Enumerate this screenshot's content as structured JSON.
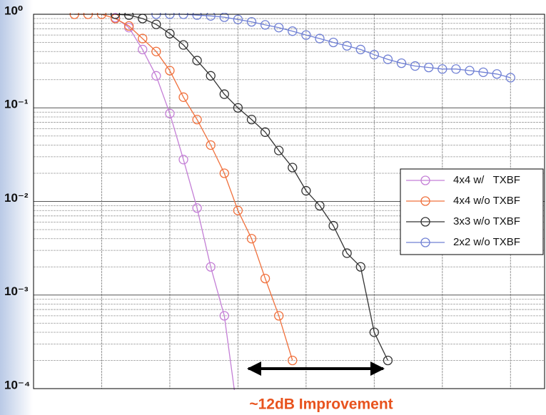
{
  "chart_data": {
    "type": "line",
    "log_y": true,
    "grid": true,
    "legend": "right",
    "annotation": "~12dB Improvement",
    "xlim": [
      0,
      37.5
    ],
    "xticks": [
      0,
      5,
      10,
      15,
      20,
      25,
      30,
      35
    ],
    "ylim": [
      0.0001,
      1
    ],
    "yticks": [
      {
        "value": 0.0001,
        "label": "10⁻⁴"
      },
      {
        "value": 0.001,
        "label": "10⁻³"
      },
      {
        "value": 0.01,
        "label": "10⁻²"
      },
      {
        "value": 0.1,
        "label": "10⁻¹"
      },
      {
        "value": 1,
        "label": "10⁰"
      }
    ],
    "series": [
      {
        "name": "4x4 w/   TXBF",
        "color": "#c47fd6",
        "x": [
          6,
          7,
          8,
          9,
          10,
          11,
          12,
          13,
          14,
          15
        ],
        "values": [
          0.92,
          0.72,
          0.42,
          0.22,
          0.087,
          0.028,
          0.0085,
          0.002,
          0.0006,
          5e-05
        ]
      },
      {
        "name": "4x4 w/o TXBF",
        "color": "#f0703c",
        "x": [
          3,
          4,
          5,
          6,
          7,
          8,
          9,
          10,
          11,
          12,
          13,
          14,
          15,
          16,
          17,
          18,
          19
        ],
        "values": [
          1,
          1,
          1,
          0.9,
          0.75,
          0.55,
          0.4,
          0.25,
          0.13,
          0.075,
          0.04,
          0.02,
          0.008,
          0.004,
          0.0015,
          0.0006,
          0.0002
        ]
      },
      {
        "name": "3x3 w/o TXBF",
        "color": "#333333",
        "x": [
          6,
          7,
          8,
          9,
          10,
          11,
          12,
          13,
          14,
          15,
          16,
          17,
          18,
          19,
          20,
          21,
          22,
          23,
          24,
          25,
          26
        ],
        "values": [
          1,
          0.98,
          0.9,
          0.78,
          0.62,
          0.47,
          0.32,
          0.22,
          0.14,
          0.1,
          0.075,
          0.055,
          0.035,
          0.023,
          0.013,
          0.009,
          0.0055,
          0.0028,
          0.002,
          0.0004,
          0.0002
        ]
      },
      {
        "name": "2x2 w/o TXBF",
        "color": "#7080d4",
        "x": [
          9,
          10,
          11,
          12,
          13,
          14,
          15,
          16,
          17,
          18,
          19,
          20,
          21,
          22,
          23,
          24,
          25,
          26,
          27,
          28,
          29,
          30,
          31,
          32,
          33,
          34,
          35
        ],
        "values": [
          1,
          1,
          1,
          0.98,
          0.96,
          0.93,
          0.88,
          0.83,
          0.77,
          0.72,
          0.66,
          0.6,
          0.55,
          0.5,
          0.46,
          0.42,
          0.37,
          0.33,
          0.3,
          0.28,
          0.27,
          0.26,
          0.26,
          0.25,
          0.24,
          0.23,
          0.21
        ]
      }
    ]
  }
}
